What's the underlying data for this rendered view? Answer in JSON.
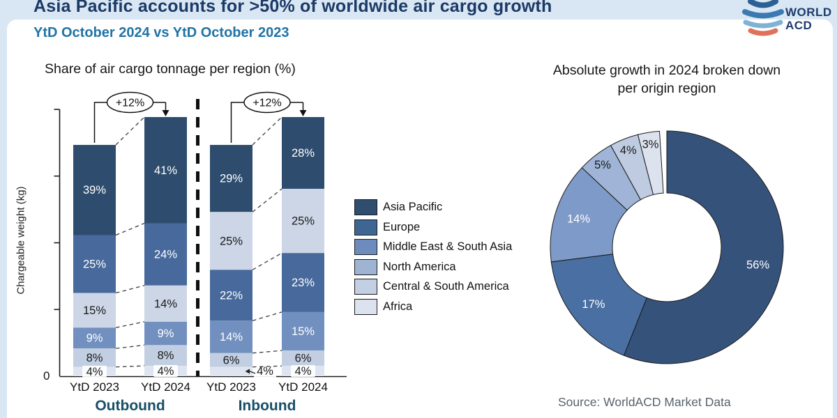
{
  "page": {
    "title": "Asia Pacific accounts for >50% of worldwide air cargo growth",
    "subtitle": "YtD October 2024 vs YtD October 2023",
    "source": "Source: WorldACD Market Data",
    "logo": {
      "line1": "WORLD",
      "line2": "ACD"
    }
  },
  "colors": {
    "page_background": "#d9e6f3",
    "card_background": "#ffffff",
    "title_navy": "#1b3a66",
    "subtitle_blue": "#2173a6",
    "group_label_teal": "#174e66",
    "source_gray": "#59636d"
  },
  "regions": [
    {
      "name": "Asia Pacific",
      "legend_color": "#2e4d6f",
      "bar_color": "#2e4d6e",
      "donut_color": "#35527b",
      "label_color": "#ffffff"
    },
    {
      "name": "Europe",
      "legend_color": "#3f6593",
      "bar_color": "#47699b",
      "donut_color": "#4a6fa2",
      "label_color": "#ffffff"
    },
    {
      "name": "Middle East & South Asia",
      "legend_color": "#6d8cbd",
      "bar_color": "#7190bf",
      "donut_color": "#7e9ac8",
      "label_color": "#ffffff"
    },
    {
      "name": "North America",
      "legend_color": "#9fb4d3",
      "bar_color": "#ccd6e6",
      "donut_color": "#9fb4d6",
      "label_color": "#1a1a1a"
    },
    {
      "name": "Central & South America",
      "legend_color": "#c3cfe2",
      "bar_color": "#c2cee1",
      "donut_color": "#becbe0",
      "label_color": "#1a1a1a"
    },
    {
      "name": "Africa",
      "legend_color": "#dce2ee",
      "bar_color": "#dfe5f0",
      "donut_color": "#dde3ee",
      "label_color": "#1a1a1a"
    }
  ],
  "chart_data": [
    {
      "type": "bar",
      "stacked": true,
      "title": "Share of air cargo tonnage per region (%)",
      "ylabel": "Chargeable weight (kg)",
      "y_origin_label": "0",
      "groups": [
        {
          "label": "Outbound",
          "growth": "+12%",
          "bars": [
            {
              "label": "YtD 2023",
              "segments": [
                {
                  "region": "Asia Pacific",
                  "pct": 39
                },
                {
                  "region": "Europe",
                  "pct": 25
                },
                {
                  "region": "North America",
                  "pct": 15
                },
                {
                  "region": "Middle East & South Asia",
                  "pct": 9
                },
                {
                  "region": "Central & South America",
                  "pct": 8
                },
                {
                  "region": "Africa",
                  "pct": 4
                }
              ]
            },
            {
              "label": "YtD 2024",
              "segments": [
                {
                  "region": "Asia Pacific",
                  "pct": 41
                },
                {
                  "region": "Europe",
                  "pct": 24
                },
                {
                  "region": "North America",
                  "pct": 14
                },
                {
                  "region": "Middle East & South Asia",
                  "pct": 9
                },
                {
                  "region": "Central & South America",
                  "pct": 8
                },
                {
                  "region": "Africa",
                  "pct": 4
                }
              ]
            }
          ]
        },
        {
          "label": "Inbound",
          "growth": "+12%",
          "bars": [
            {
              "label": "YtD 2023",
              "segments": [
                {
                  "region": "Asia Pacific",
                  "pct": 29
                },
                {
                  "region": "North America",
                  "pct": 25
                },
                {
                  "region": "Europe",
                  "pct": 22
                },
                {
                  "region": "Middle East & South Asia",
                  "pct": 14
                },
                {
                  "region": "Central & South America",
                  "pct": 6
                },
                {
                  "region": "Africa",
                  "pct": 4
                }
              ]
            },
            {
              "label": "YtD 2024",
              "segments": [
                {
                  "region": "Asia Pacific",
                  "pct": 28
                },
                {
                  "region": "North America",
                  "pct": 25
                },
                {
                  "region": "Europe",
                  "pct": 23
                },
                {
                  "region": "Middle East & South Asia",
                  "pct": 15
                },
                {
                  "region": "Central & South America",
                  "pct": 6
                },
                {
                  "region": "Africa",
                  "pct": 4
                }
              ]
            }
          ]
        }
      ]
    },
    {
      "type": "donut",
      "title": "Absolute growth in 2024 broken down per origin region",
      "slices": [
        {
          "region": "Asia Pacific",
          "pct": 56
        },
        {
          "region": "Europe",
          "pct": 17
        },
        {
          "region": "Middle East & South Asia",
          "pct": 14
        },
        {
          "region": "North America",
          "pct": 5
        },
        {
          "region": "Central & South America",
          "pct": 4
        },
        {
          "region": "Africa",
          "pct": 3
        }
      ]
    }
  ]
}
